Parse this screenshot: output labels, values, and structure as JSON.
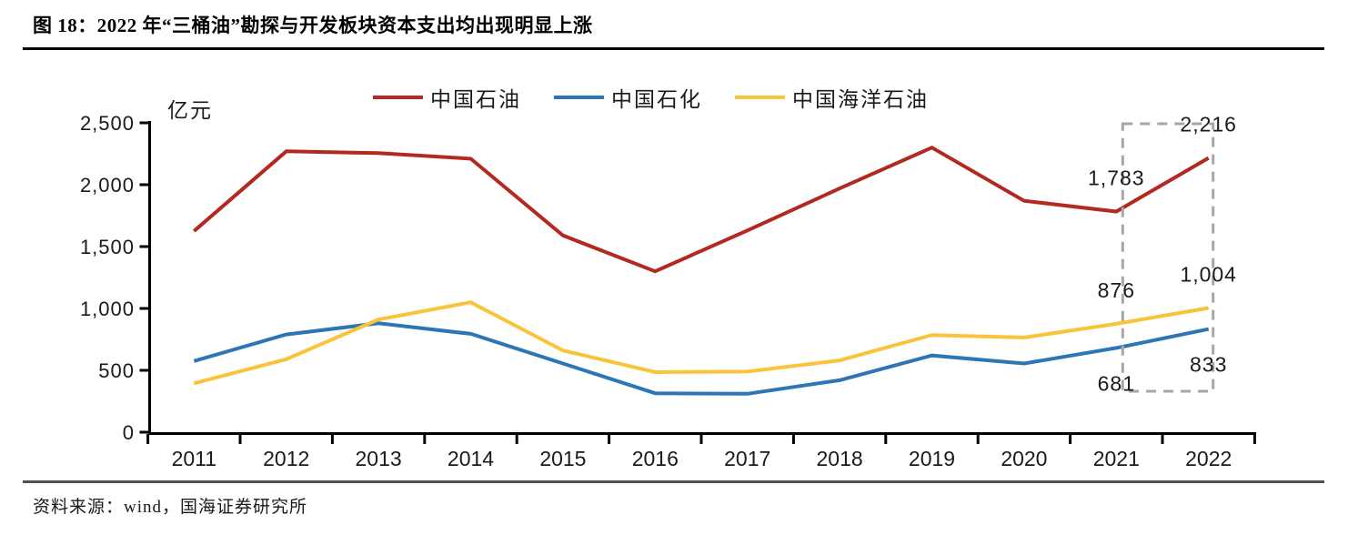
{
  "figure": {
    "title": "图 18：2022 年“三桶油”勘探与开发板块资本支出均出现明显上涨",
    "unit_label": "亿元",
    "source": "资料来源：wind，国海证券研究所"
  },
  "colors": {
    "petrochina_red": "#B2291F",
    "sinopec_blue": "#2E75B6",
    "cnooc_yellow": "#FAC33C",
    "axis_black": "#000000",
    "label_black": "#1a1a1a",
    "highlight_gray": "#A6A6A6",
    "divider_gray": "#4f4f4f"
  },
  "chart_data": {
    "type": "line",
    "title": "2022 年“三桶油”勘探与开发板块资本支出均出现明显上涨",
    "ylabel": "亿元",
    "xlabel": "",
    "ylim": [
      0,
      2500
    ],
    "ytick_step": 500,
    "ytick_labels": [
      "0",
      "500",
      "1,000",
      "1,500",
      "2,000",
      "2,500"
    ],
    "grid": false,
    "legend_position": "top",
    "categories": [
      "2011",
      "2012",
      "2013",
      "2014",
      "2015",
      "2016",
      "2017",
      "2018",
      "2019",
      "2020",
      "2021",
      "2022"
    ],
    "series": [
      {
        "key": "petrochina",
        "name": "中国石油",
        "color": "#B2291F",
        "values": [
          1625,
          2270,
          2255,
          2210,
          1590,
          1300,
          1630,
          1970,
          2300,
          1870,
          1783,
          2216
        ]
      },
      {
        "key": "sinopec",
        "name": "中国石化",
        "color": "#2E75B6",
        "values": [
          575,
          790,
          880,
          795,
          555,
          315,
          310,
          420,
          620,
          555,
          681,
          833
        ]
      },
      {
        "key": "cnooc",
        "name": "中国海洋石油",
        "color": "#FAC33C",
        "values": [
          395,
          590,
          910,
          1050,
          660,
          485,
          490,
          580,
          785,
          765,
          876,
          1004
        ]
      }
    ],
    "annotations": {
      "data_labels": [
        {
          "series_key": "petrochina",
          "category": "2021",
          "text": "1,783",
          "placement": "above"
        },
        {
          "series_key": "petrochina",
          "category": "2022",
          "text": "2,216",
          "placement": "above"
        },
        {
          "series_key": "cnooc",
          "category": "2021",
          "text": "876",
          "placement": "above"
        },
        {
          "series_key": "cnooc",
          "category": "2022",
          "text": "1,004",
          "placement": "above"
        },
        {
          "series_key": "sinopec",
          "category": "2021",
          "text": "681",
          "placement": "below"
        },
        {
          "series_key": "sinopec",
          "category": "2022",
          "text": "833",
          "placement": "below"
        }
      ],
      "highlight_box": {
        "from_category": "2021",
        "to_category": "2022",
        "style": "dashed",
        "color": "#A6A6A6"
      }
    }
  }
}
